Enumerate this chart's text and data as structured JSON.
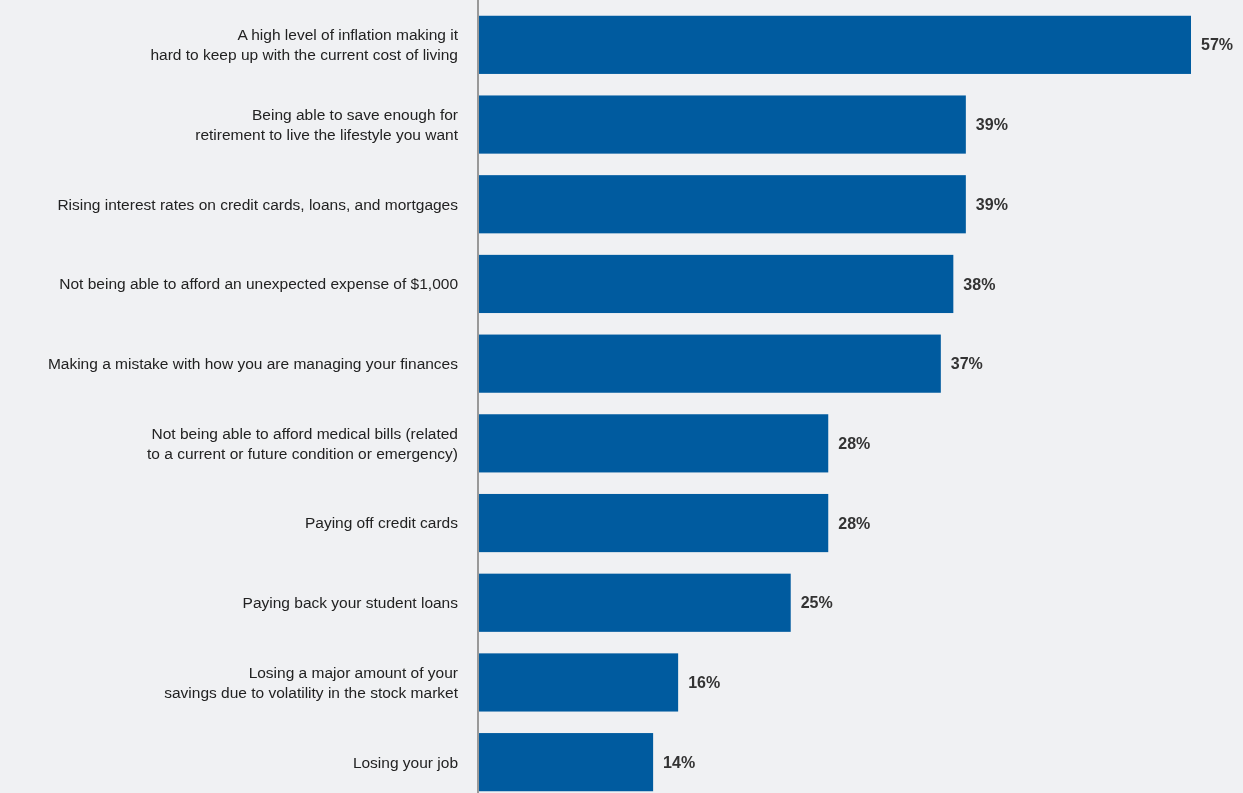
{
  "chart_data": {
    "type": "bar",
    "orientation": "horizontal",
    "categories": [
      "A high level of inflation making it\nhard to keep up with the current cost of living",
      "Being able to save enough for\nretirement to live the lifestyle you want",
      "Rising interest rates on credit cards, loans, and mortgages",
      "Not being able to afford an unexpected expense of $1,000",
      "Making a mistake with how you are managing your finances",
      "Not being able to afford medical bills (related\nto a current or future condition or emergency)",
      "Paying off credit cards",
      "Paying back your student loans",
      "Losing a major amount of your\nsavings due to volatility in the stock market",
      "Losing your job"
    ],
    "values": [
      57,
      39,
      39,
      38,
      37,
      28,
      28,
      25,
      16,
      14
    ],
    "value_labels": [
      "57%",
      "39%",
      "39%",
      "38%",
      "37%",
      "28%",
      "28%",
      "25%",
      "16%",
      "14%"
    ],
    "color": "#005b9f"
  }
}
